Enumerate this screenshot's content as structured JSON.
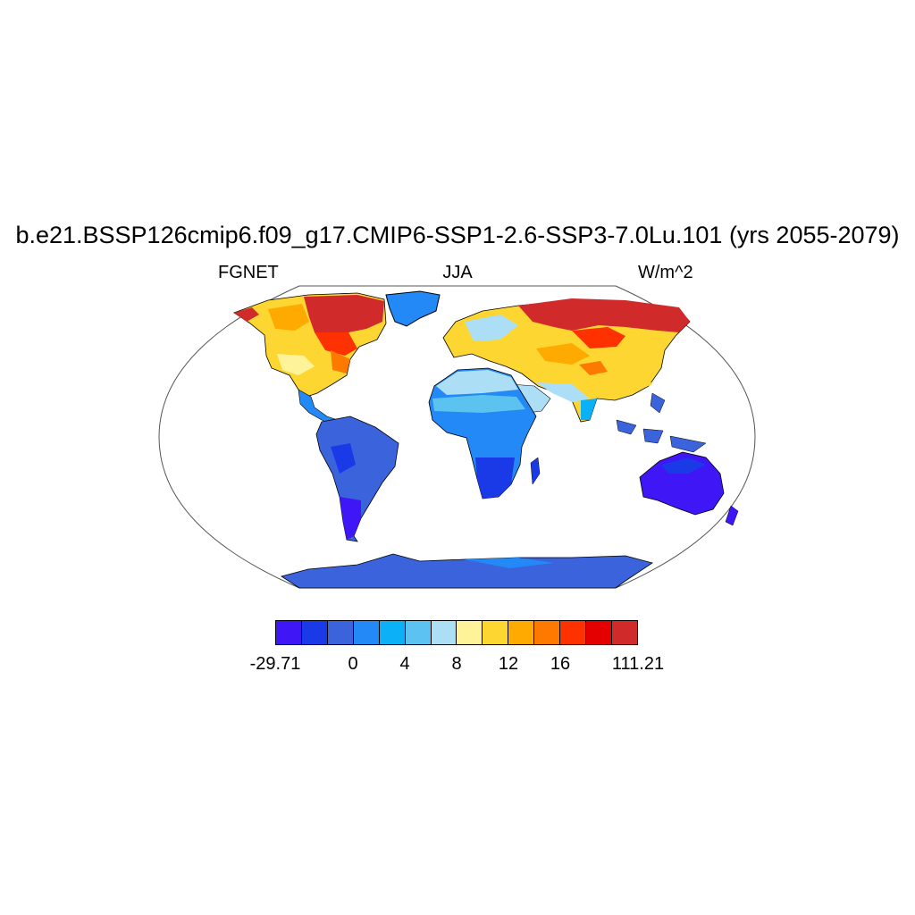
{
  "title": "b.e21.BSSP126cmip6.f09_g17.CMIP6-SSP1-2.6-SSP3-7.0Lu.101 (yrs 2055-2079)",
  "left_label": "FGNET",
  "center_label": "JJA",
  "right_label": "W/m^2",
  "map": {
    "projection": "Robinson",
    "field": "FGNET",
    "season": "JJA",
    "units": "W/m^2"
  },
  "colorbar": {
    "colors": [
      "#3f16f5",
      "#1a3ae8",
      "#3b63dc",
      "#2389f7",
      "#0bb0f7",
      "#5cc3f0",
      "#acdff5",
      "#fff39a",
      "#fed631",
      "#feaa00",
      "#fe7900",
      "#fe3100",
      "#e50000",
      "#d12a2a"
    ],
    "labels": [
      {
        "text": "-29.71",
        "boundary": 0
      },
      {
        "text": "0",
        "boundary": 3
      },
      {
        "text": "4",
        "boundary": 5
      },
      {
        "text": "8",
        "boundary": 7
      },
      {
        "text": "12",
        "boundary": 9
      },
      {
        "text": "16",
        "boundary": 11
      },
      {
        "text": "111.21",
        "boundary": 14
      }
    ]
  }
}
